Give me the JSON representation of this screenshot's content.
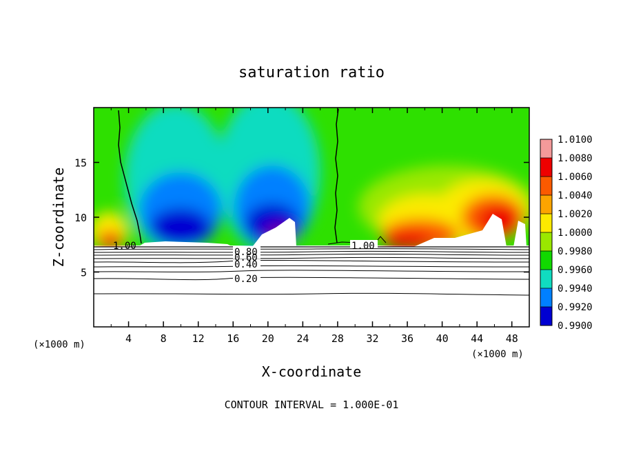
{
  "chart_data": {
    "type": "heatmap",
    "title": "saturation ratio",
    "xlabel": "X-coordinate",
    "ylabel": "Z-coordinate",
    "x_unit": "(×1000 m)",
    "z_unit": "(×1000 m)",
    "xlim": [
      0,
      50
    ],
    "ylim": [
      0,
      20
    ],
    "x_ticks": [
      "4",
      "8",
      "12",
      "16",
      "20",
      "24",
      "28",
      "32",
      "36",
      "40",
      "44",
      "48"
    ],
    "y_ticks": [
      "5",
      "10",
      "15"
    ],
    "colorbar": {
      "levels": [
        "1.0100",
        "1.0080",
        "1.0060",
        "1.0040",
        "1.0020",
        "1.0000",
        "0.9980",
        "0.9960",
        "0.9940",
        "0.9920",
        "0.9900"
      ],
      "colors": [
        "#f49a9a",
        "#ee0000",
        "#fb5a00",
        "#fca400",
        "#fcea00",
        "#9ae800",
        "#11d900",
        "#10dcc0",
        "#0080ff",
        "#0000d2",
        "#7a0094"
      ]
    },
    "contour_lines": [
      {
        "label": "1.00",
        "x": [
          1.0,
          5.5
        ],
        "y": [
          7.3,
          7.3
        ]
      },
      {
        "label": "1.00",
        "x": [
          28,
          34
        ],
        "y": [
          7.4,
          7.4
        ]
      },
      {
        "label": "0.80",
        "x": [
          12,
          36
        ],
        "y": [
          6.9,
          6.9
        ]
      },
      {
        "label": "0.60",
        "x": [
          12,
          36
        ],
        "y": [
          6.5,
          6.5
        ]
      },
      {
        "label": "0.40",
        "x": [
          12,
          36
        ],
        "y": [
          5.8,
          5.8
        ]
      },
      {
        "label": "0.20",
        "x": [
          12,
          36
        ],
        "y": [
          4.4,
          4.4
        ]
      }
    ],
    "contour_interval_text": "CONTOUR INTERVAL = 1.000E-01"
  }
}
